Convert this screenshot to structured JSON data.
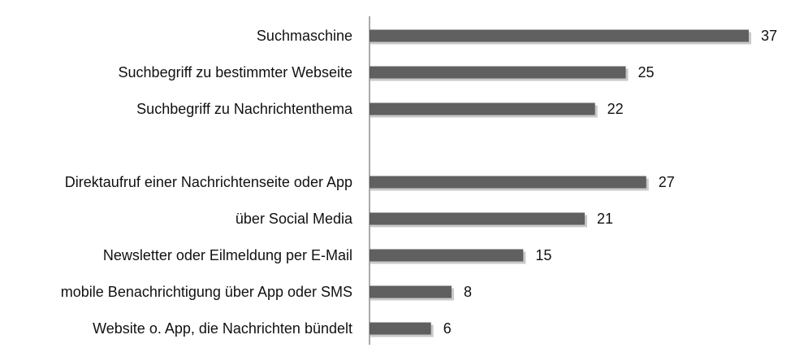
{
  "chart_data": {
    "type": "bar",
    "orientation": "horizontal",
    "categories": [
      "Suchmaschine",
      "Suchbegriff zu bestimmter Webseite",
      "Suchbegriff zu Nachrichtenthema",
      "",
      "Direktaufruf einer Nachrichtenseite oder App",
      "über Social Media",
      "Newsletter oder Eilmeldung per E-Mail",
      "mobile Benachrichtigung über App oder SMS",
      "Website o. App, die Nachrichten bündelt"
    ],
    "values": [
      37,
      25,
      22,
      null,
      27,
      21,
      15,
      8,
      6
    ],
    "value_labels": [
      "37",
      "25",
      "22",
      "",
      "27",
      "21",
      "15",
      "8",
      "6"
    ],
    "xlim": [
      0,
      37
    ],
    "grid": false,
    "legend": "none",
    "bar_color": "#606060"
  }
}
